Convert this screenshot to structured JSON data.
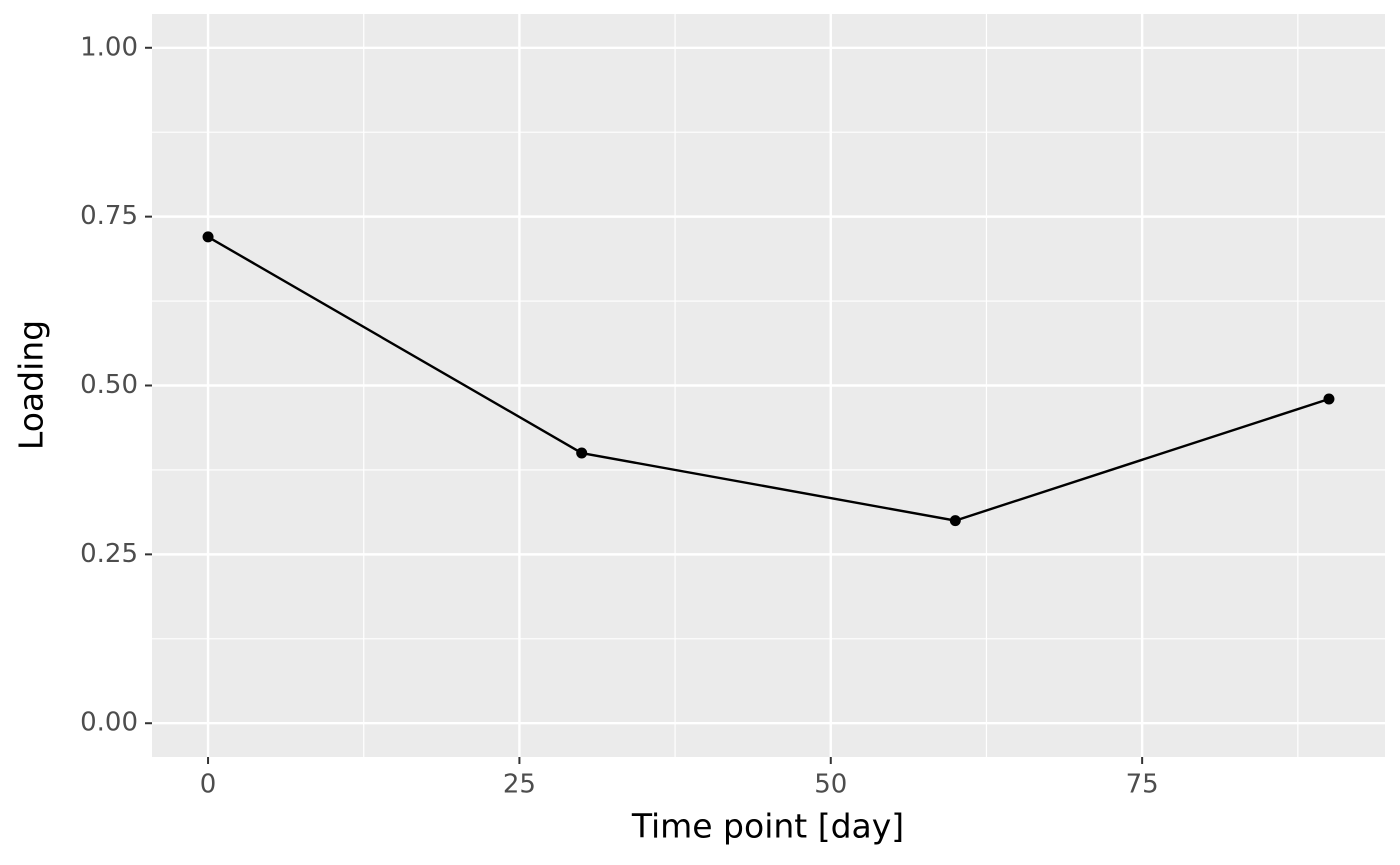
{
  "chart_data": {
    "type": "line",
    "x_label": "Time point [day]",
    "y_label": "Loading",
    "x": [
      0,
      30,
      60,
      90
    ],
    "series": [
      {
        "color": "#000000",
        "values": [
          0.72,
          0.4,
          0.3,
          0.48
        ]
      }
    ],
    "xlim": [
      -4.5,
      94.5
    ],
    "ylim": [
      -0.05,
      1.05
    ],
    "xticks": [
      0,
      25,
      50,
      75
    ],
    "yticks": [
      {
        "value": 0,
        "label": "0.00"
      },
      {
        "value": 0.25,
        "label": "0.25"
      },
      {
        "value": 0.5,
        "label": "0.50"
      },
      {
        "value": 0.75,
        "label": "0.75"
      },
      {
        "value": 1,
        "label": "1.00"
      }
    ],
    "grid": true
  }
}
